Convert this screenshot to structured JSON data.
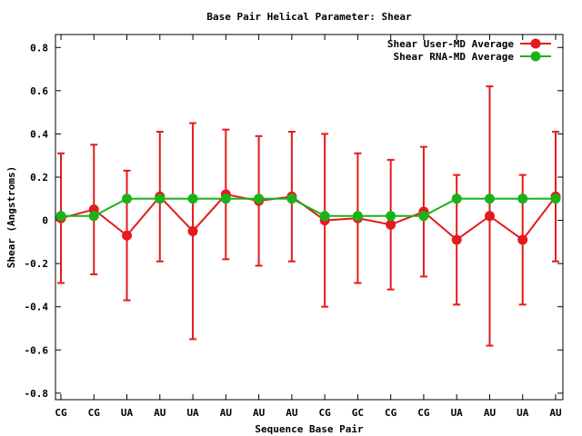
{
  "chart_data": {
    "type": "line",
    "title": "Base Pair Helical Parameter: Shear",
    "xlabel": "Sequence Base Pair",
    "ylabel": "Shear (Angstroms)",
    "categories": [
      "CG",
      "CG",
      "UA",
      "AU",
      "UA",
      "AU",
      "AU",
      "AU",
      "CG",
      "GC",
      "CG",
      "CG",
      "UA",
      "AU",
      "UA",
      "AU"
    ],
    "ylim": [
      -0.83,
      0.86
    ],
    "yticks": [
      -0.8,
      -0.6,
      -0.4,
      -0.2,
      0,
      0.2,
      0.4,
      0.6,
      0.8
    ],
    "ytick_labels": [
      "-0.8",
      "-0.6",
      "-0.4",
      "-0.2",
      "0",
      "0.2",
      "0.4",
      "0.6",
      "0.8"
    ],
    "grid": false,
    "legend_position": "top-right",
    "series": [
      {
        "name": "Shear User-MD Average",
        "color": "#e41a1c",
        "values": [
          0.01,
          0.05,
          -0.07,
          0.11,
          -0.05,
          0.12,
          0.09,
          0.11,
          0.0,
          0.01,
          -0.02,
          0.04,
          -0.09,
          0.02,
          -0.09,
          0.11
        ],
        "error_low": [
          -0.29,
          -0.25,
          -0.37,
          -0.19,
          -0.55,
          -0.18,
          -0.21,
          -0.19,
          -0.4,
          -0.29,
          -0.32,
          -0.26,
          -0.39,
          -0.58,
          -0.39,
          -0.19
        ],
        "error_high": [
          0.31,
          0.35,
          0.23,
          0.41,
          0.45,
          0.42,
          0.39,
          0.41,
          0.4,
          0.31,
          0.28,
          0.34,
          0.21,
          0.62,
          0.21,
          0.41
        ]
      },
      {
        "name": "Shear RNA-MD Average",
        "color": "#19b319",
        "values": [
          0.02,
          0.02,
          0.1,
          0.1,
          0.1,
          0.1,
          0.1,
          0.1,
          0.02,
          0.02,
          0.02,
          0.02,
          0.1,
          0.1,
          0.1,
          0.1
        ]
      }
    ]
  }
}
